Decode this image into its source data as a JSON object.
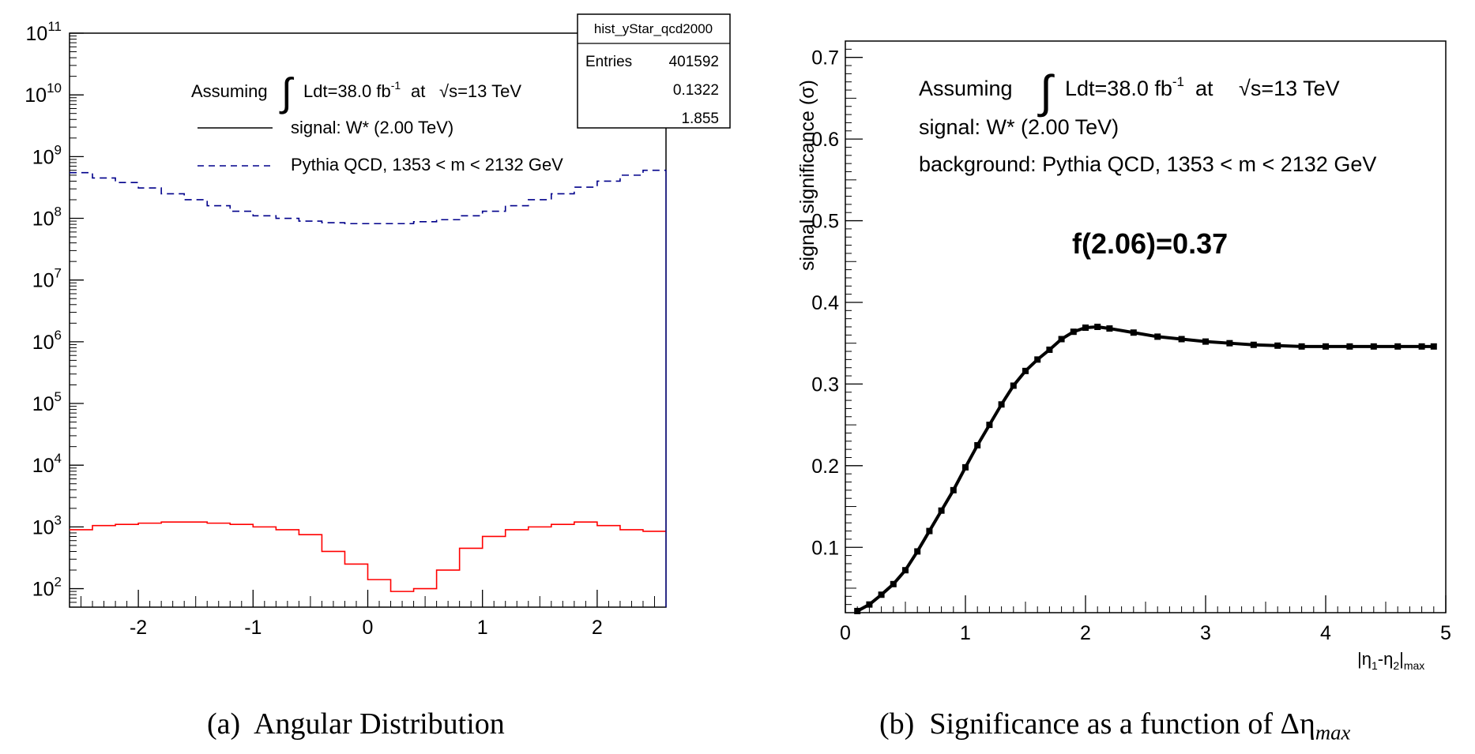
{
  "chart_data": [
    {
      "type": "line",
      "panel_label": "(a)",
      "caption": "Angular Distribution",
      "yscale": "log",
      "xlim": [
        -2.6,
        2.6
      ],
      "ylim_exponent": [
        1.7,
        11
      ],
      "x_ticks": [
        "-2",
        "-1",
        "0",
        "1",
        "2"
      ],
      "y_ticks": [
        {
          "exp": 2,
          "base": "10",
          "sup": "2"
        },
        {
          "exp": 3,
          "base": "10",
          "sup": "3"
        },
        {
          "exp": 4,
          "base": "10",
          "sup": "4"
        },
        {
          "exp": 5,
          "base": "10",
          "sup": "5"
        },
        {
          "exp": 6,
          "base": "10",
          "sup": "6"
        },
        {
          "exp": 7,
          "base": "10",
          "sup": "7"
        },
        {
          "exp": 8,
          "base": "10",
          "sup": "8"
        },
        {
          "exp": 9,
          "base": "10",
          "sup": "9"
        },
        {
          "exp": 10,
          "base": "10",
          "sup": "10"
        },
        {
          "exp": 11,
          "base": "10",
          "sup": "11"
        }
      ],
      "stats_box": {
        "title": "hist_yStar_qcd2000",
        "rows": [
          [
            "Entries",
            "401592"
          ],
          [
            "",
            "0.1322"
          ],
          [
            "",
            "1.855"
          ]
        ]
      },
      "legend": {
        "assuming_prefix": "Assuming",
        "integral": "∫",
        "lumi_base": "Ldt=38.0 fb",
        "lumi_sup": "-1",
        "at": "at",
        "sqrt_sym": "√s",
        "energy": "=13 TeV",
        "entries": [
          "signal: W* (2.00 TeV)",
          "Pythia QCD, 1353 < m < 2132 GeV"
        ]
      },
      "bin_edges": [
        -2.6,
        -2.4,
        -2.2,
        -2.0,
        -1.8,
        -1.6,
        -1.4,
        -1.2,
        -1.0,
        -0.8,
        -0.6,
        -0.4,
        -0.2,
        0.0,
        0.2,
        0.4,
        0.6,
        0.8,
        1.0,
        1.2,
        1.4,
        1.6,
        1.8,
        2.0,
        2.2,
        2.4,
        2.6
      ],
      "series": [
        {
          "name": "signal: W* (2.00 TeV)",
          "color": "#ff0000",
          "style": "solid",
          "values": [
            900,
            1050,
            1100,
            1150,
            1200,
            1200,
            1150,
            1100,
            1000,
            900,
            750,
            400,
            250,
            140,
            90,
            100,
            200,
            450,
            700,
            900,
            1000,
            1100,
            1200,
            1050,
            900,
            850
          ]
        },
        {
          "name": "Pythia QCD, 1353 < m < 2132 GeV",
          "color": "#00008b",
          "style": "dashed",
          "values": [
            550000000,
            450000000,
            380000000,
            310000000,
            250000000,
            200000000,
            160000000,
            130000000,
            110000000,
            100000000,
            90000000,
            85000000,
            82000000,
            82000000,
            82000000,
            88000000,
            95000000,
            110000000,
            130000000,
            160000000,
            200000000,
            250000000,
            320000000,
            400000000,
            500000000,
            600000000
          ]
        }
      ]
    },
    {
      "type": "line",
      "panel_label": "(b)",
      "caption": "Significance as a function of Δη",
      "caption_sub": "max",
      "xlim": [
        0,
        5
      ],
      "ylim": [
        0.02,
        0.72
      ],
      "x_ticks": [
        "0",
        "1",
        "2",
        "3",
        "4",
        "5"
      ],
      "y_ticks": [
        "0.1",
        "0.2",
        "0.3",
        "0.4",
        "0.5",
        "0.6",
        "0.7"
      ],
      "ylabel": "signal significance (σ)",
      "xlabel_parts": [
        "|η",
        "1",
        "-η",
        "2",
        "|",
        "max"
      ],
      "annotation": "f(2.06)=0.37",
      "legend": {
        "assuming_prefix": "Assuming",
        "integral": "∫",
        "lumi_base": "Ldt=38.0 fb",
        "lumi_sup": "-1",
        "at": "at",
        "sqrt_sym": "√s",
        "energy": "=13 TeV",
        "lines": [
          "signal: W* (2.00 TeV)",
          "background: Pythia QCD, 1353 < m < 2132 GeV"
        ]
      },
      "series": [
        {
          "color": "#000000",
          "x": [
            0.1,
            0.2,
            0.3,
            0.4,
            0.5,
            0.6,
            0.7,
            0.8,
            0.9,
            1.0,
            1.1,
            1.2,
            1.3,
            1.4,
            1.5,
            1.6,
            1.7,
            1.8,
            1.9,
            2.0,
            2.1,
            2.2,
            2.4,
            2.6,
            2.8,
            3.0,
            3.2,
            3.4,
            3.6,
            3.8,
            4.0,
            4.2,
            4.4,
            4.6,
            4.8,
            4.9
          ],
          "y": [
            0.022,
            0.03,
            0.042,
            0.055,
            0.072,
            0.095,
            0.12,
            0.145,
            0.17,
            0.198,
            0.225,
            0.25,
            0.275,
            0.298,
            0.316,
            0.33,
            0.342,
            0.355,
            0.364,
            0.369,
            0.37,
            0.368,
            0.363,
            0.358,
            0.355,
            0.352,
            0.35,
            0.348,
            0.347,
            0.346,
            0.346,
            0.346,
            0.346,
            0.346,
            0.346,
            0.346
          ]
        }
      ]
    }
  ]
}
